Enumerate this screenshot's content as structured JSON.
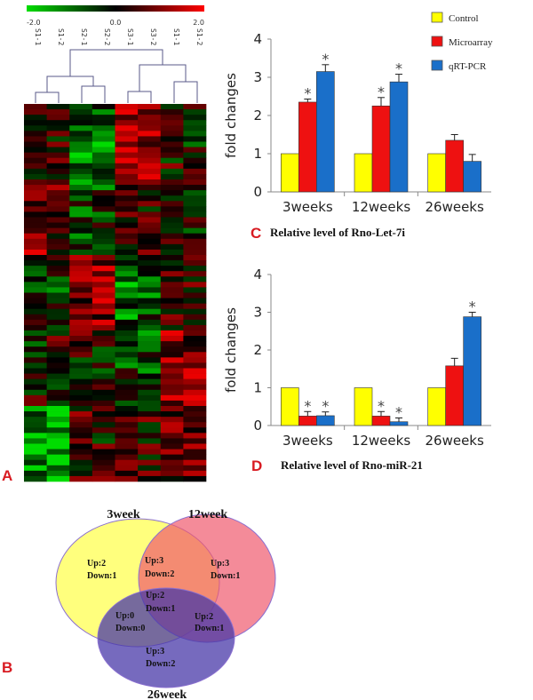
{
  "panel_labels": {
    "a": "A",
    "b": "B",
    "c": "C",
    "d": "D"
  },
  "colors": {
    "control": "#ffff00",
    "microarray": "#ee1111",
    "qrtpcr": "#1a6fc9",
    "panel_label": "#d81b22",
    "heat_low": "#00dd00",
    "heat_mid": "#000000",
    "heat_high": "#ff0000",
    "venn_3week": "#ffff66",
    "venn_12week": "#f05a6e",
    "venn_26week": "#6a5ab0"
  },
  "heatmap": {
    "scale_labels": [
      "-2.0",
      "0.0",
      "2.0"
    ],
    "samples": [
      "S1-1",
      "S1-2",
      "S2-1",
      "S2-2",
      "S3-1",
      "S3-2",
      "S1-1",
      "S1-2"
    ],
    "rows": 70
  },
  "legend": [
    "Control",
    "Microarray",
    "qRT-PCR"
  ],
  "chart_data": [
    {
      "type": "bar",
      "panel": "C",
      "title": "Relative level of Rno-Let-7i",
      "ylabel": "fold changes",
      "xlabel": "",
      "categories": [
        "3weeks",
        "12weeks",
        "26weeks"
      ],
      "ylim": [
        0,
        4
      ],
      "yticks": [
        "0",
        "1",
        "2",
        "3",
        "4"
      ],
      "series": [
        {
          "name": "Control",
          "values": [
            1,
            1,
            1
          ],
          "errors": [
            0,
            0,
            0
          ]
        },
        {
          "name": "Microarray",
          "values": [
            2.35,
            2.25,
            1.35
          ],
          "errors": [
            0.08,
            0.22,
            0.15
          ]
        },
        {
          "name": "qRT-PCR",
          "values": [
            3.15,
            2.88,
            0.8
          ],
          "errors": [
            0.18,
            0.2,
            0.18
          ]
        }
      ],
      "annotations": [
        {
          "label": "*",
          "category": "3weeks",
          "series": "Microarray"
        },
        {
          "label": "*",
          "category": "3weeks",
          "series": "qRT-PCR"
        },
        {
          "label": "*",
          "category": "12weeks",
          "series": "Microarray"
        },
        {
          "label": "*",
          "category": "12weeks",
          "series": "qRT-PCR"
        }
      ]
    },
    {
      "type": "bar",
      "panel": "D",
      "title": "Relative level of Rno-miR-21",
      "ylabel": "fold changes",
      "xlabel": "",
      "categories": [
        "3weeks",
        "12weeks",
        "26weeks"
      ],
      "ylim": [
        0,
        4
      ],
      "yticks": [
        "0",
        "1",
        "2",
        "3",
        "4"
      ],
      "series": [
        {
          "name": "Control",
          "values": [
            1,
            1,
            1
          ],
          "errors": [
            0,
            0,
            0
          ]
        },
        {
          "name": "Microarray",
          "values": [
            0.25,
            0.25,
            1.58
          ],
          "errors": [
            0.12,
            0.12,
            0.2
          ]
        },
        {
          "name": "qRT-PCR",
          "values": [
            0.26,
            0.1,
            2.88
          ],
          "errors": [
            0.1,
            0.1,
            0.12
          ]
        }
      ],
      "annotations": [
        {
          "label": "*",
          "category": "3weeks",
          "series": "Microarray"
        },
        {
          "label": "*",
          "category": "3weeks",
          "series": "qRT-PCR"
        },
        {
          "label": "*",
          "category": "12weeks",
          "series": "Microarray"
        },
        {
          "label": "*",
          "category": "12weeks",
          "series": "qRT-PCR"
        },
        {
          "label": "*",
          "category": "26weeks",
          "series": "qRT-PCR"
        }
      ]
    }
  ],
  "venn": {
    "sets": [
      "3week",
      "12week",
      "26week"
    ],
    "regions": [
      {
        "id": "only-3week",
        "up": "Up:2",
        "down": "Down:1"
      },
      {
        "id": "3week-12week",
        "up": "Up:3",
        "down": "Down:2"
      },
      {
        "id": "only-12week",
        "up": "Up:3",
        "down": "Down:1"
      },
      {
        "id": "all-three",
        "up": "Up:2",
        "down": "Down:1"
      },
      {
        "id": "3week-26week",
        "up": "Up:0",
        "down": "Down:0"
      },
      {
        "id": "12week-26week",
        "up": "Up:2",
        "down": "Down:1"
      },
      {
        "id": "only-26week",
        "up": "Up:3",
        "down": "Down:2"
      }
    ]
  }
}
